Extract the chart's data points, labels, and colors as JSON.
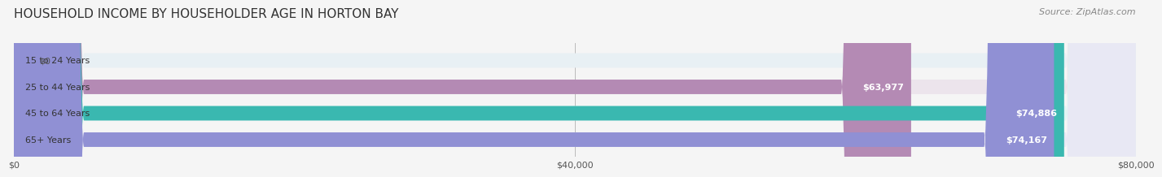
{
  "title": "HOUSEHOLD INCOME BY HOUSEHOLDER AGE IN HORTON BAY",
  "source": "Source: ZipAtlas.com",
  "categories": [
    "15 to 24 Years",
    "25 to 44 Years",
    "45 to 64 Years",
    "65+ Years"
  ],
  "values": [
    0,
    63977,
    74886,
    74167
  ],
  "labels": [
    "$0",
    "$63,977",
    "$74,886",
    "$74,167"
  ],
  "bar_colors": [
    "#a8c4d4",
    "#b48ab4",
    "#3ab8b0",
    "#9090d4"
  ],
  "bar_bg_colors": [
    "#e8f0f4",
    "#ece4ec",
    "#e0f4f4",
    "#e8e8f4"
  ],
  "xlim": [
    0,
    80000
  ],
  "xticks": [
    0,
    40000,
    80000
  ],
  "xticklabels": [
    "$0",
    "$40,000",
    "$80,000"
  ],
  "title_fontsize": 11,
  "source_fontsize": 8,
  "label_fontsize": 8,
  "cat_fontsize": 8,
  "bar_height": 0.55,
  "background_color": "#f5f5f5"
}
